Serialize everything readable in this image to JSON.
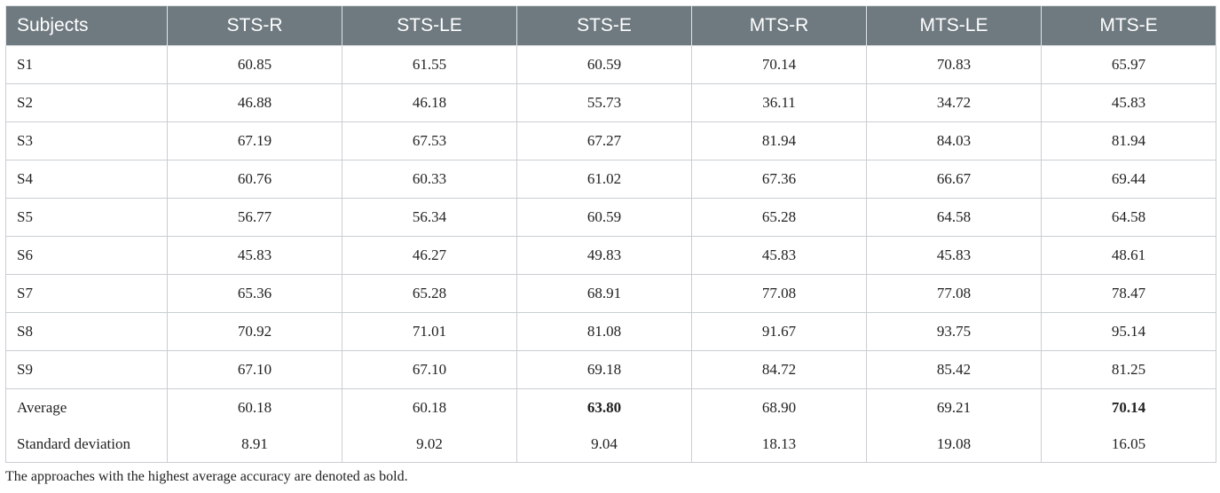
{
  "table": {
    "headers": [
      "Subjects",
      "STS-R",
      "STS-LE",
      "STS-E",
      "MTS-R",
      "MTS-LE",
      "MTS-E"
    ],
    "rows": [
      [
        "S1",
        "60.85",
        "61.55",
        "60.59",
        "70.14",
        "70.83",
        "65.97"
      ],
      [
        "S2",
        "46.88",
        "46.18",
        "55.73",
        "36.11",
        "34.72",
        "45.83"
      ],
      [
        "S3",
        "67.19",
        "67.53",
        "67.27",
        "81.94",
        "84.03",
        "81.94"
      ],
      [
        "S4",
        "60.76",
        "60.33",
        "61.02",
        "67.36",
        "66.67",
        "69.44"
      ],
      [
        "S5",
        "56.77",
        "56.34",
        "60.59",
        "65.28",
        "64.58",
        "64.58"
      ],
      [
        "S6",
        "45.83",
        "46.27",
        "49.83",
        "45.83",
        "45.83",
        "48.61"
      ],
      [
        "S7",
        "65.36",
        "65.28",
        "68.91",
        "77.08",
        "77.08",
        "78.47"
      ],
      [
        "S8",
        "70.92",
        "71.01",
        "81.08",
        "91.67",
        "93.75",
        "95.14"
      ],
      [
        "S9",
        "67.10",
        "67.10",
        "69.18",
        "84.72",
        "85.42",
        "81.25"
      ]
    ],
    "summary_rows": [
      [
        "Average",
        "60.18",
        "60.18",
        "63.80",
        "68.90",
        "69.21",
        "70.14"
      ],
      [
        "Standard deviation",
        "8.91",
        "9.02",
        "9.04",
        "18.13",
        "19.08",
        "16.05"
      ]
    ]
  },
  "footnote": "The approaches with the highest average accuracy are denoted as bold.",
  "colors": {
    "header_bg": "#6f7a80",
    "header_text": "#ffffff",
    "grid": "#c9ced2"
  }
}
